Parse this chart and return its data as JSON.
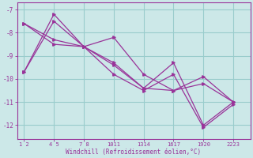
{
  "xlabel": "Windchill (Refroidissement éolien,°C)",
  "background_color": "#cce8e8",
  "grid_color": "#99cccc",
  "line_color": "#993399",
  "line1_x": [
    1.5,
    4.5,
    7.5,
    10.5,
    13.5,
    16.5,
    19.5,
    22.5
  ],
  "line1_y": [
    -9.7,
    -7.2,
    -8.6,
    -8.2,
    -9.8,
    -10.5,
    -9.9,
    -11.0
  ],
  "line2_x": [
    1.5,
    4.5,
    7.5,
    10.5,
    13.5,
    16.5,
    19.5,
    22.5
  ],
  "line2_y": [
    -7.6,
    -8.3,
    -8.6,
    -9.3,
    -10.4,
    -9.3,
    -12.0,
    -11.0
  ],
  "line3_x": [
    1.5,
    4.5,
    7.5,
    10.5,
    13.5,
    16.5,
    19.5,
    22.5
  ],
  "line3_y": [
    -9.7,
    -7.5,
    -8.6,
    -9.4,
    -10.4,
    -10.5,
    -10.2,
    -11.0
  ],
  "line4_x": [
    1.5,
    4.5,
    7.5,
    10.5,
    13.5,
    16.5,
    19.5,
    22.5
  ],
  "line4_y": [
    -7.6,
    -8.5,
    -8.6,
    -9.8,
    -10.5,
    -9.8,
    -12.1,
    -11.1
  ],
  "xtick_positions": [
    1.5,
    4.5,
    7.5,
    10.5,
    13.5,
    16.5,
    19.5,
    22.5
  ],
  "xtick_labels": [
    "1 2",
    "4 5",
    "7 8",
    "1011",
    "1314",
    "1617",
    "1920",
    "2223"
  ],
  "xlim": [
    0.8,
    24.2
  ],
  "ylim": [
    -12.6,
    -6.7
  ],
  "yticks": [
    -7,
    -8,
    -9,
    -10,
    -11,
    -12
  ]
}
